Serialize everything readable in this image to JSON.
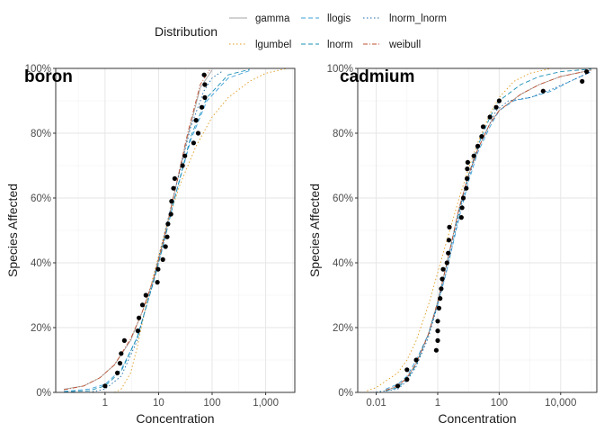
{
  "legend": {
    "title": "Distribution",
    "entries": [
      {
        "name": "gamma",
        "color": "#a6a6a6",
        "dash": "solid"
      },
      {
        "name": "llogis",
        "color": "#3b9fd8",
        "dash": "dashed"
      },
      {
        "name": "lnorm_lnorm",
        "color": "#1c6aa8",
        "dash": "dotted"
      },
      {
        "name": "lgumbel",
        "color": "#e09a1b",
        "dash": "dotted"
      },
      {
        "name": "lnorm",
        "color": "#1a8fb5",
        "dash": "dashed"
      },
      {
        "name": "weibull",
        "color": "#c0502f",
        "dash": "dashdot"
      }
    ]
  },
  "chart_data": [
    {
      "type": "line",
      "tag": "boron",
      "xlabel": "Concentration",
      "ylabel": "Species Affected",
      "xscale": "log10",
      "xlim": [
        0.12,
        3500
      ],
      "ylim": [
        0,
        1
      ],
      "x_ticks": [
        {
          "value": 1,
          "label": "1"
        },
        {
          "value": 10,
          "label": "10"
        },
        {
          "value": 100,
          "label": "100"
        },
        {
          "value": 1000,
          "label": "1,000"
        }
      ],
      "y_ticks": [
        {
          "value": 0,
          "label": "0%"
        },
        {
          "value": 0.2,
          "label": "20%"
        },
        {
          "value": 0.4,
          "label": "40%"
        },
        {
          "value": 0.6,
          "label": "60%"
        },
        {
          "value": 0.8,
          "label": "80%"
        },
        {
          "value": 1,
          "label": "100%"
        }
      ],
      "grid": true,
      "points": [
        {
          "x": 1.0,
          "y": 0.02
        },
        {
          "x": 1.7,
          "y": 0.06
        },
        {
          "x": 1.9,
          "y": 0.09
        },
        {
          "x": 2.0,
          "y": 0.12
        },
        {
          "x": 2.3,
          "y": 0.16
        },
        {
          "x": 4.1,
          "y": 0.19
        },
        {
          "x": 4.3,
          "y": 0.23
        },
        {
          "x": 5.0,
          "y": 0.27
        },
        {
          "x": 5.8,
          "y": 0.3
        },
        {
          "x": 9.5,
          "y": 0.34
        },
        {
          "x": 9.8,
          "y": 0.38
        },
        {
          "x": 12.0,
          "y": 0.41
        },
        {
          "x": 13.5,
          "y": 0.45
        },
        {
          "x": 14.5,
          "y": 0.48
        },
        {
          "x": 15.0,
          "y": 0.52
        },
        {
          "x": 17.0,
          "y": 0.55
        },
        {
          "x": 17.5,
          "y": 0.59
        },
        {
          "x": 19.0,
          "y": 0.63
        },
        {
          "x": 20.0,
          "y": 0.66
        },
        {
          "x": 28.0,
          "y": 0.7
        },
        {
          "x": 31.0,
          "y": 0.73
        },
        {
          "x": 45.0,
          "y": 0.77
        },
        {
          "x": 55.0,
          "y": 0.8
        },
        {
          "x": 50.0,
          "y": 0.84
        },
        {
          "x": 64.0,
          "y": 0.88
        },
        {
          "x": 73.0,
          "y": 0.91
        },
        {
          "x": 73.0,
          "y": 0.95
        },
        {
          "x": 71.0,
          "y": 0.98
        }
      ],
      "series": [
        {
          "name": "gamma",
          "x": [
            0.17,
            0.4,
            0.8,
            1.5,
            3,
            5,
            8,
            12,
            20,
            35,
            60,
            100
          ],
          "y": [
            0.01,
            0.02,
            0.045,
            0.085,
            0.16,
            0.25,
            0.35,
            0.46,
            0.62,
            0.79,
            0.94,
            0.995
          ]
        },
        {
          "name": "llogis",
          "x": [
            0.17,
            0.5,
            1,
            2,
            4,
            8,
            12,
            20,
            40,
            80,
            200,
            500
          ],
          "y": [
            0.003,
            0.01,
            0.025,
            0.07,
            0.17,
            0.34,
            0.45,
            0.6,
            0.78,
            0.9,
            0.97,
            0.993
          ]
        },
        {
          "name": "lnorm_lnorm",
          "x": [
            0.5,
            1,
            2,
            4,
            8,
            12,
            20,
            40,
            70,
            100,
            150
          ],
          "y": [
            0.0,
            0.01,
            0.05,
            0.16,
            0.35,
            0.47,
            0.62,
            0.82,
            0.93,
            0.97,
            0.99
          ]
        },
        {
          "name": "lgumbel",
          "x": [
            1.5,
            2,
            3,
            4,
            6,
            10,
            15,
            25,
            50,
            100,
            200,
            500,
            1000,
            2500
          ],
          "y": [
            0.0,
            0.01,
            0.06,
            0.14,
            0.28,
            0.42,
            0.53,
            0.64,
            0.76,
            0.85,
            0.91,
            0.96,
            0.985,
            1.0
          ]
        },
        {
          "name": "lnorm",
          "x": [
            0.17,
            0.5,
            1,
            2,
            4,
            8,
            12,
            20,
            40,
            80,
            200,
            500
          ],
          "y": [
            0.001,
            0.005,
            0.02,
            0.065,
            0.17,
            0.34,
            0.45,
            0.6,
            0.79,
            0.91,
            0.98,
            0.997
          ]
        },
        {
          "name": "weibull",
          "x": [
            0.17,
            0.4,
            0.8,
            1.5,
            3,
            5,
            8,
            12,
            20,
            35,
            60,
            90
          ],
          "y": [
            0.008,
            0.02,
            0.045,
            0.085,
            0.165,
            0.25,
            0.35,
            0.46,
            0.62,
            0.8,
            0.95,
            0.995
          ]
        }
      ]
    },
    {
      "type": "line",
      "tag": "cadmium",
      "xlabel": "Concentration",
      "ylabel": "Species Affected",
      "xscale": "log10",
      "xlim": [
        0.0025,
        150000
      ],
      "ylim": [
        0,
        1
      ],
      "x_ticks": [
        {
          "value": 0.01,
          "label": "0.01"
        },
        {
          "value": 1,
          "label": "1"
        },
        {
          "value": 100,
          "label": "100"
        },
        {
          "value": 10000,
          "label": "10,000"
        }
      ],
      "y_ticks": [
        {
          "value": 0,
          "label": "0%"
        },
        {
          "value": 0.2,
          "label": "20%"
        },
        {
          "value": 0.4,
          "label": "40%"
        },
        {
          "value": 0.6,
          "label": "60%"
        },
        {
          "value": 0.8,
          "label": "80%"
        },
        {
          "value": 1,
          "label": "100%"
        }
      ],
      "grid": true,
      "points": [
        {
          "x": 0.05,
          "y": 0.02
        },
        {
          "x": 0.1,
          "y": 0.04
        },
        {
          "x": 0.1,
          "y": 0.07
        },
        {
          "x": 0.2,
          "y": 0.1
        },
        {
          "x": 0.9,
          "y": 0.13
        },
        {
          "x": 1.0,
          "y": 0.16
        },
        {
          "x": 1.0,
          "y": 0.19
        },
        {
          "x": 1.0,
          "y": 0.22
        },
        {
          "x": 1.1,
          "y": 0.26
        },
        {
          "x": 1.2,
          "y": 0.29
        },
        {
          "x": 1.3,
          "y": 0.32
        },
        {
          "x": 1.4,
          "y": 0.35
        },
        {
          "x": 1.5,
          "y": 0.38
        },
        {
          "x": 2.0,
          "y": 0.4
        },
        {
          "x": 2.2,
          "y": 0.43
        },
        {
          "x": 2.3,
          "y": 0.47
        },
        {
          "x": 2.4,
          "y": 0.51
        },
        {
          "x": 5.9,
          "y": 0.54
        },
        {
          "x": 6.2,
          "y": 0.57
        },
        {
          "x": 6.8,
          "y": 0.6
        },
        {
          "x": 8.5,
          "y": 0.63
        },
        {
          "x": 9.0,
          "y": 0.66
        },
        {
          "x": 9.2,
          "y": 0.69
        },
        {
          "x": 9.5,
          "y": 0.71
        },
        {
          "x": 15.0,
          "y": 0.73
        },
        {
          "x": 20.0,
          "y": 0.76
        },
        {
          "x": 27.0,
          "y": 0.79
        },
        {
          "x": 30.0,
          "y": 0.82
        },
        {
          "x": 50.0,
          "y": 0.85
        },
        {
          "x": 80.0,
          "y": 0.88
        },
        {
          "x": 100.0,
          "y": 0.9
        },
        {
          "x": 2700.0,
          "y": 0.93
        },
        {
          "x": 50000.0,
          "y": 0.96
        },
        {
          "x": 70000.0,
          "y": 0.99
        }
      ],
      "series": [
        {
          "name": "gamma",
          "x": [
            0.02,
            0.05,
            0.1,
            0.2,
            0.5,
            1,
            2,
            5,
            10,
            20,
            50,
            100,
            500,
            2000,
            10000,
            100000
          ],
          "y": [
            0.005,
            0.02,
            0.045,
            0.09,
            0.18,
            0.28,
            0.4,
            0.57,
            0.67,
            0.75,
            0.83,
            0.87,
            0.92,
            0.95,
            0.975,
            0.995
          ]
        },
        {
          "name": "llogis",
          "x": [
            0.02,
            0.05,
            0.1,
            0.2,
            0.5,
            1,
            2,
            5,
            10,
            20,
            50,
            100,
            300,
            1000,
            5000,
            20000,
            100000
          ],
          "y": [
            0.01,
            0.025,
            0.05,
            0.1,
            0.18,
            0.27,
            0.38,
            0.54,
            0.65,
            0.74,
            0.82,
            0.87,
            0.9,
            0.91,
            0.93,
            0.96,
            0.99
          ]
        },
        {
          "name": "lnorm_lnorm",
          "x": [
            0.01,
            0.05,
            0.1,
            0.2,
            0.5,
            1,
            2,
            5,
            10,
            20,
            50,
            80,
            200,
            1000,
            5000,
            20000,
            100000
          ],
          "y": [
            0.001,
            0.01,
            0.035,
            0.08,
            0.17,
            0.27,
            0.38,
            0.55,
            0.66,
            0.75,
            0.83,
            0.87,
            0.9,
            0.91,
            0.935,
            0.96,
            0.99
          ]
        },
        {
          "name": "lgumbel",
          "x": [
            0.005,
            0.01,
            0.05,
            0.1,
            0.2,
            0.5,
            1,
            2,
            5,
            10,
            20,
            50,
            100,
            300,
            1000,
            5000
          ],
          "y": [
            0.005,
            0.015,
            0.06,
            0.1,
            0.16,
            0.27,
            0.37,
            0.47,
            0.6,
            0.69,
            0.77,
            0.86,
            0.91,
            0.96,
            0.985,
            1.0
          ]
        },
        {
          "name": "lnorm",
          "x": [
            0.02,
            0.05,
            0.1,
            0.2,
            0.5,
            1,
            2,
            5,
            10,
            20,
            50,
            100,
            500,
            2000,
            10000,
            100000
          ],
          "y": [
            0.004,
            0.015,
            0.04,
            0.085,
            0.18,
            0.28,
            0.4,
            0.56,
            0.67,
            0.76,
            0.85,
            0.9,
            0.95,
            0.975,
            0.99,
            0.998
          ]
        },
        {
          "name": "weibull",
          "x": [
            0.02,
            0.05,
            0.1,
            0.2,
            0.5,
            1,
            2,
            5,
            10,
            20,
            50,
            100,
            500,
            2000,
            10000,
            100000
          ],
          "y": [
            0.006,
            0.02,
            0.045,
            0.09,
            0.18,
            0.28,
            0.4,
            0.57,
            0.67,
            0.75,
            0.83,
            0.87,
            0.92,
            0.95,
            0.975,
            0.995
          ]
        }
      ]
    }
  ]
}
